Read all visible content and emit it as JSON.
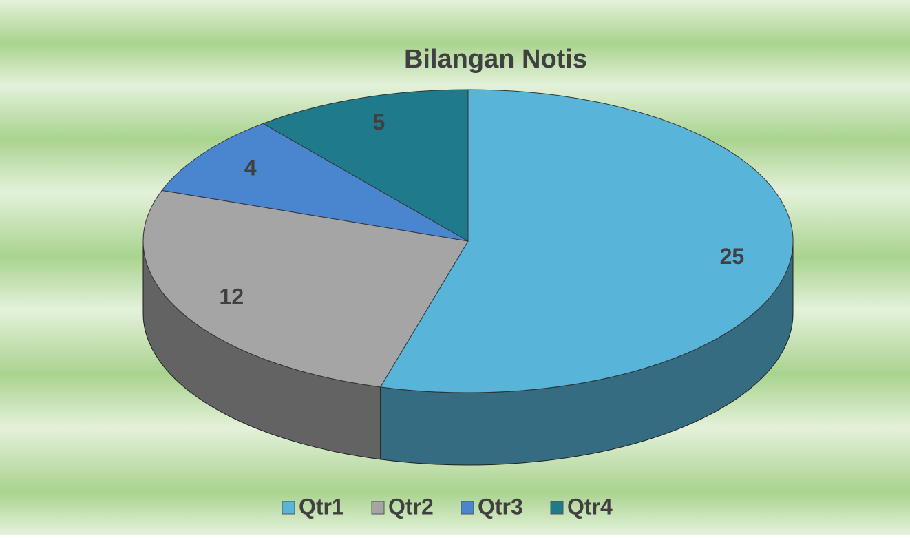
{
  "chart_data": {
    "type": "pie",
    "title": "Bilangan Notis",
    "categories": [
      "Qtr1",
      "Qtr2",
      "Qtr3",
      "Qtr4"
    ],
    "values": [
      25,
      12,
      4,
      5
    ],
    "colors": [
      "#58b4d8",
      "#a5a5a5",
      "#4a86d0",
      "#1f7a8c"
    ],
    "legend": "bottom"
  }
}
